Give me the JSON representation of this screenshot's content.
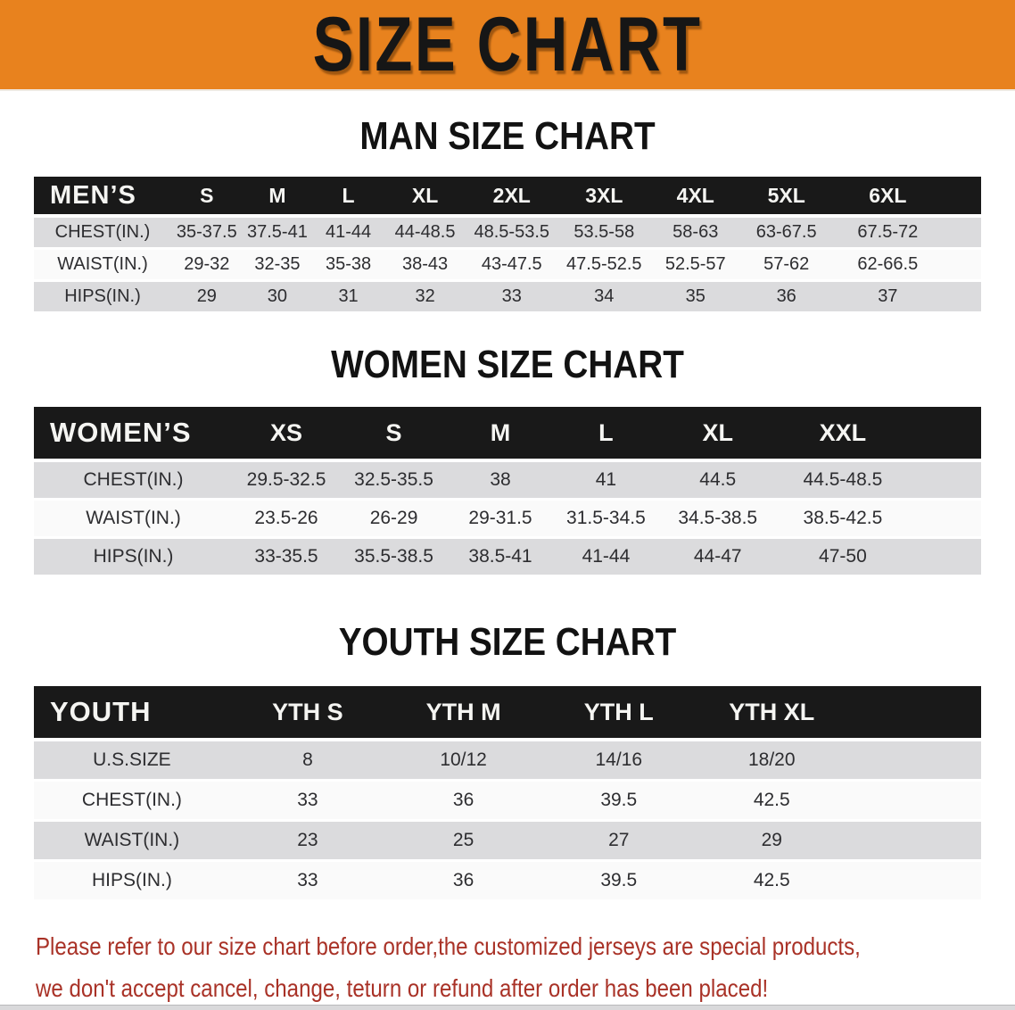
{
  "banner": {
    "title": "SIZE CHART",
    "background_color": "#E8821E",
    "text_color": "#161616"
  },
  "sections": {
    "men": {
      "heading": "MAN SIZE CHART"
    },
    "women": {
      "heading": "WOMEN SIZE CHART"
    },
    "youth": {
      "heading": "YOUTH SIZE CHART"
    }
  },
  "tables": {
    "men": {
      "label": "MEN’S",
      "columns": [
        "S",
        "M",
        "L",
        "XL",
        "2XL",
        "3XL",
        "4XL",
        "5XL",
        "6XL"
      ],
      "rows": [
        {
          "label": "CHEST(IN.)",
          "values": [
            "35-37.5",
            "37.5-41",
            "41-44",
            "44-48.5",
            "48.5-53.5",
            "53.5-58",
            "58-63",
            "63-67.5",
            "67.5-72"
          ]
        },
        {
          "label": "WAIST(IN.)",
          "values": [
            "29-32",
            "32-35",
            "35-38",
            "38-43",
            "43-47.5",
            "47.5-52.5",
            "52.5-57",
            "57-62",
            "62-66.5"
          ]
        },
        {
          "label": "HIPS(IN.)",
          "values": [
            "29",
            "30",
            "31",
            "32",
            "33",
            "34",
            "35",
            "36",
            "37"
          ]
        }
      ]
    },
    "women": {
      "label": "WOMEN’S",
      "columns": [
        "XS",
        "S",
        "M",
        "L",
        "XL",
        "XXL"
      ],
      "rows": [
        {
          "label": "CHEST(IN.)",
          "values": [
            "29.5-32.5",
            "32.5-35.5",
            "38",
            "41",
            "44.5",
            "44.5-48.5"
          ]
        },
        {
          "label": "WAIST(IN.)",
          "values": [
            "23.5-26",
            "26-29",
            "29-31.5",
            "31.5-34.5",
            "34.5-38.5",
            "38.5-42.5"
          ]
        },
        {
          "label": "HIPS(IN.)",
          "values": [
            "33-35.5",
            "35.5-38.5",
            "38.5-41",
            "41-44",
            "44-47",
            "47-50"
          ]
        }
      ]
    },
    "youth": {
      "label": "YOUTH",
      "columns": [
        "YTH S",
        "YTH M",
        "YTH L",
        "YTH XL"
      ],
      "rows": [
        {
          "label": "U.S.SIZE",
          "values": [
            "8",
            "10/12",
            "14/16",
            "18/20"
          ]
        },
        {
          "label": "CHEST(IN.)",
          "values": [
            "33",
            "36",
            "39.5",
            "42.5"
          ]
        },
        {
          "label": "WAIST(IN.)",
          "values": [
            "23",
            "25",
            "27",
            "29"
          ]
        },
        {
          "label": "HIPS(IN.)",
          "values": [
            "33",
            "36",
            "39.5",
            "42.5"
          ]
        }
      ]
    }
  },
  "disclaimer": {
    "line1": "Please refer to our size chart before order,the customized jerseys are special products,",
    "line2": "we don't accept cancel, change, teturn or refund after order has been placed!",
    "text_color": "#A93227"
  },
  "colors": {
    "banner_orange": "#E8821E",
    "header_bar_black": "#191919",
    "row_grey": "#dbdbdd",
    "row_white": "#fafafa",
    "disclaimer_red": "#A93227"
  }
}
